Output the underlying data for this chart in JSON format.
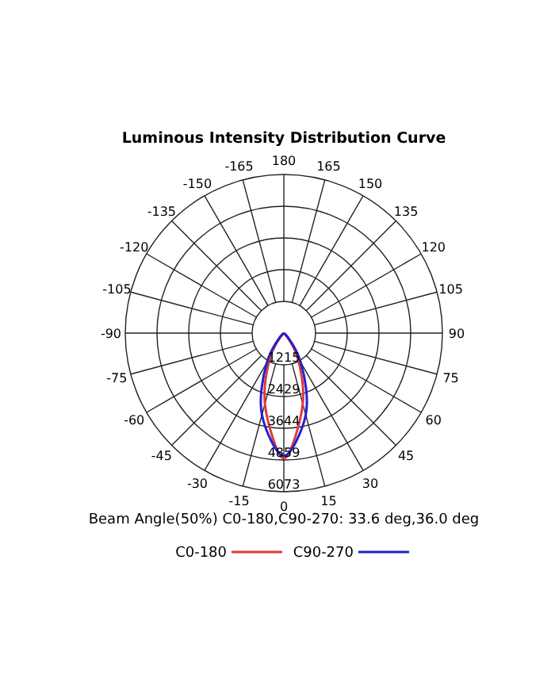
{
  "chart_data": {
    "type": "radar",
    "title": "Luminous Intensity Distribution Curve",
    "categories": [
      "180",
      "165",
      "150",
      "135",
      "120",
      "105",
      "90",
      "75",
      "60",
      "45",
      "30",
      "15",
      "0",
      "-15",
      "-30",
      "-45",
      "-60",
      "-75",
      "-90",
      "-105",
      "-120",
      "-135",
      "-150",
      "-165"
    ],
    "series": [
      {
        "name": "C0-180",
        "color": "#e03a3e",
        "values": [
          0,
          0,
          0,
          0,
          0,
          0,
          0,
          0,
          0,
          100,
          1000,
          2800,
          4800,
          2800,
          1000,
          100,
          0,
          0,
          0,
          0,
          0,
          0,
          0,
          0
        ]
      },
      {
        "name": "C90-270",
        "color": "#2222cc",
        "values": [
          0,
          0,
          0,
          0,
          0,
          0,
          0,
          0,
          0,
          200,
          1300,
          3240,
          4700,
          3240,
          1300,
          200,
          0,
          0,
          0,
          0,
          0,
          0,
          0,
          0
        ]
      }
    ],
    "ylim": [
      0,
      6073
    ],
    "yticks": [
      1215,
      2429,
      3644,
      4859,
      6073
    ],
    "grid": true,
    "legend": "bottom",
    "annotations": [
      "Beam Angle(50%) C0-180,C90-270: 33.6 deg,36.0 deg"
    ]
  }
}
